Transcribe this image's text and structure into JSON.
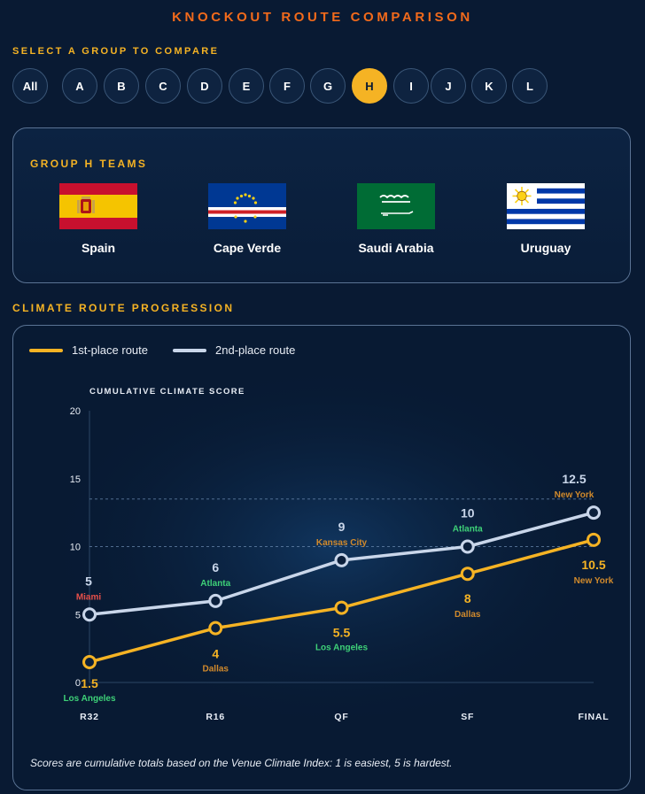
{
  "page": {
    "title": "KNOCKOUT ROUTE COMPARISON",
    "select_label": "SELECT A GROUP TO COMPARE",
    "groups": [
      "All",
      "A",
      "B",
      "C",
      "D",
      "E",
      "F",
      "G",
      "H",
      "I",
      "J",
      "K",
      "L"
    ],
    "active_group": "H",
    "teams_title": "GROUP H TEAMS",
    "teams": [
      {
        "name": "Spain",
        "flag": "spain-flag-icon"
      },
      {
        "name": "Cape Verde",
        "flag": "cape-verde-flag-icon"
      },
      {
        "name": "Saudi Arabia",
        "flag": "saudi-arabia-flag-icon"
      },
      {
        "name": "Uruguay",
        "flag": "uruguay-flag-icon"
      }
    ],
    "progression_title": "CLIMATE ROUTE PROGRESSION",
    "footnote": "Scores are cumulative totals based on the Venue Climate Index: 1 is easiest, 5 is hardest."
  },
  "colors": {
    "accent_orange": "#f26a1b",
    "accent_gold": "#f5b324",
    "second_route": "#c9d6ea",
    "city_green": "#3ed178",
    "city_amber": "#d18a2c",
    "city_red": "#e8504a"
  },
  "chart_data": {
    "type": "line",
    "ylabel": "CUMULATIVE CLIMATE SCORE",
    "ylim": [
      0,
      20
    ],
    "yticks": [
      0,
      5,
      10,
      15,
      20
    ],
    "categories": [
      "R32",
      "R16",
      "QF",
      "SF",
      "FINAL"
    ],
    "reference_lines": [
      10,
      13.5
    ],
    "grid": false,
    "legend": "top-left",
    "series": [
      {
        "name": "1st-place route",
        "color": "#f5b324",
        "values": [
          1.5,
          4,
          5.5,
          8,
          10.5
        ],
        "labels": [
          "1.5",
          "4",
          "5.5",
          "8",
          "10.5"
        ],
        "cities": [
          "Los Angeles",
          "Dallas",
          "Los Angeles",
          "Dallas",
          "New York"
        ],
        "city_colors": [
          "#3ed178",
          "#d18a2c",
          "#3ed178",
          "#d18a2c",
          "#d18a2c"
        ]
      },
      {
        "name": "2nd-place route",
        "color": "#c9d6ea",
        "values": [
          5,
          6,
          9,
          10,
          12.5
        ],
        "labels": [
          "5",
          "6",
          "9",
          "10",
          "12.5"
        ],
        "cities": [
          "Miami",
          "Atlanta",
          "Kansas City",
          "Atlanta",
          "New York"
        ],
        "city_colors": [
          "#e8504a",
          "#3ed178",
          "#d18a2c",
          "#3ed178",
          "#d18a2c"
        ]
      }
    ]
  }
}
